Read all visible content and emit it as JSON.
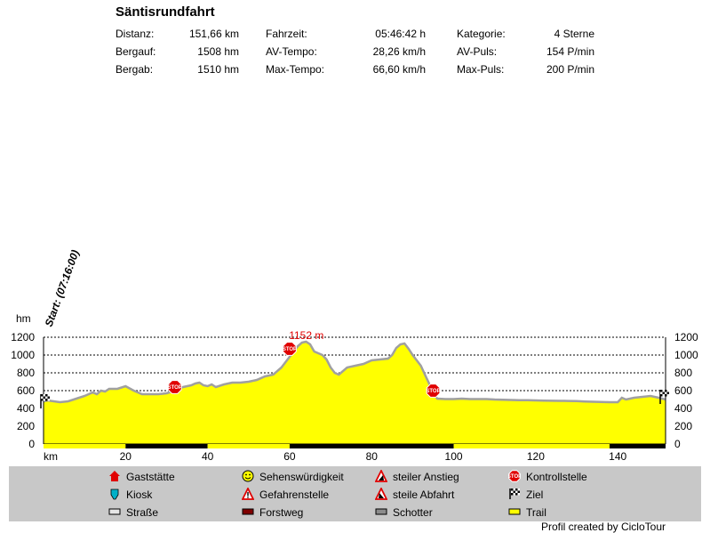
{
  "title": "Säntisrundfahrt",
  "stats": [
    [
      {
        "label": "Distanz:",
        "value": "151,66 km"
      },
      {
        "label": "Fahrzeit:",
        "value": "05:46:42 h"
      },
      {
        "label": "Kategorie:",
        "value": "4 Sterne"
      }
    ],
    [
      {
        "label": "Bergauf:",
        "value": "1508 hm"
      },
      {
        "label": "AV-Tempo:",
        "value": "28,26 km/h"
      },
      {
        "label": "AV-Puls:",
        "value": "154 P/min"
      }
    ],
    [
      {
        "label": "Bergab:",
        "value": "1510 hm"
      },
      {
        "label": "Max-Tempo:",
        "value": "66,60 km/h"
      },
      {
        "label": "Max-Puls:",
        "value": "200 P/min"
      }
    ]
  ],
  "chart_data": {
    "type": "area",
    "xlabel": "km",
    "ylabel": "hm",
    "xlim": [
      0,
      151.66
    ],
    "ylim": [
      0,
      1200
    ],
    "x_ticks": [
      20,
      40,
      60,
      80,
      100,
      120,
      140
    ],
    "y_ticks": [
      0,
      200,
      400,
      600,
      800,
      1000,
      1200
    ],
    "grid": true,
    "fill_color": "#ffff00",
    "line_color": "#a0a0a0",
    "start_label": "Start: (07:16:00)",
    "max_label": "1152 m",
    "max_point": {
      "x": 63,
      "y": 1152
    },
    "x": [
      0,
      1,
      4,
      6,
      8,
      10,
      12,
      13,
      14,
      15,
      16,
      18,
      20,
      22,
      24,
      26,
      28,
      30,
      32,
      34,
      36,
      37,
      38,
      39,
      40,
      41,
      42,
      44,
      46,
      48,
      50,
      52,
      54,
      56,
      58,
      60,
      61,
      62,
      63,
      64,
      65,
      66,
      67,
      68,
      69,
      70,
      71,
      72,
      74,
      76,
      78,
      80,
      82,
      84,
      85,
      86,
      87,
      88,
      89,
      90,
      91,
      92,
      93,
      94,
      95,
      96,
      98,
      100,
      102,
      104,
      106,
      108,
      110,
      112,
      114,
      116,
      118,
      120,
      122,
      124,
      126,
      128,
      130,
      132,
      134,
      136,
      138,
      139,
      140,
      141,
      142,
      143,
      144,
      146,
      148,
      150,
      151.66
    ],
    "y": [
      480,
      490,
      470,
      480,
      510,
      540,
      580,
      560,
      600,
      590,
      620,
      620,
      650,
      600,
      560,
      560,
      560,
      570,
      600,
      640,
      660,
      680,
      690,
      660,
      650,
      670,
      640,
      670,
      690,
      690,
      700,
      720,
      760,
      780,
      860,
      980,
      1040,
      1100,
      1140,
      1150,
      1120,
      1040,
      1020,
      1000,
      950,
      860,
      800,
      780,
      860,
      880,
      900,
      940,
      950,
      960,
      1000,
      1080,
      1120,
      1130,
      1070,
      1000,
      940,
      880,
      780,
      680,
      570,
      510,
      505,
      505,
      510,
      505,
      505,
      505,
      500,
      498,
      495,
      493,
      492,
      490,
      488,
      486,
      485,
      484,
      482,
      478,
      475,
      472,
      470,
      470,
      470,
      520,
      500,
      510,
      520,
      530,
      540,
      520,
      500
    ]
  },
  "markers": [
    {
      "type": "start",
      "x": 0,
      "y": 480
    },
    {
      "type": "kontrollstelle",
      "x": 32,
      "y": 640
    },
    {
      "type": "kontrollstelle",
      "x": 60,
      "y": 1070
    },
    {
      "type": "kontrollstelle",
      "x": 95,
      "y": 600
    },
    {
      "type": "ziel",
      "x": 151.66,
      "y": 530
    }
  ],
  "surface_bar": [
    {
      "from": 0,
      "to": 20,
      "kind": "Trail"
    },
    {
      "from": 20,
      "to": 40,
      "kind": "Straße"
    },
    {
      "from": 40,
      "to": 60,
      "kind": "Trail"
    },
    {
      "from": 60,
      "to": 100,
      "kind": "Straße"
    },
    {
      "from": 100,
      "to": 138,
      "kind": "Trail"
    },
    {
      "from": 138,
      "to": 151.66,
      "kind": "Straße"
    }
  ],
  "legend": [
    {
      "icon": "gaststaette-icon",
      "label": "Gaststätte"
    },
    {
      "icon": "sehenswuerdigkeit-icon",
      "label": "Sehenswürdigkeit"
    },
    {
      "icon": "steiler-anstieg-icon",
      "label": "steiler Anstieg"
    },
    {
      "icon": "kontrollstelle-icon",
      "label": "Kontrollstelle"
    },
    {
      "icon": "kiosk-icon",
      "label": "Kiosk"
    },
    {
      "icon": "gefahrenstelle-icon",
      "label": "Gefahrenstelle"
    },
    {
      "icon": "steile-abfahrt-icon",
      "label": "steile Abfahrt"
    },
    {
      "icon": "ziel-icon",
      "label": "Ziel"
    },
    {
      "icon": "strasse-icon",
      "label": "Straße"
    },
    {
      "icon": "forstweg-icon",
      "label": "Forstweg"
    },
    {
      "icon": "schotter-icon",
      "label": "Schotter"
    },
    {
      "icon": "trail-icon",
      "label": "Trail"
    }
  ],
  "credit": "Profil created by CicloTour"
}
